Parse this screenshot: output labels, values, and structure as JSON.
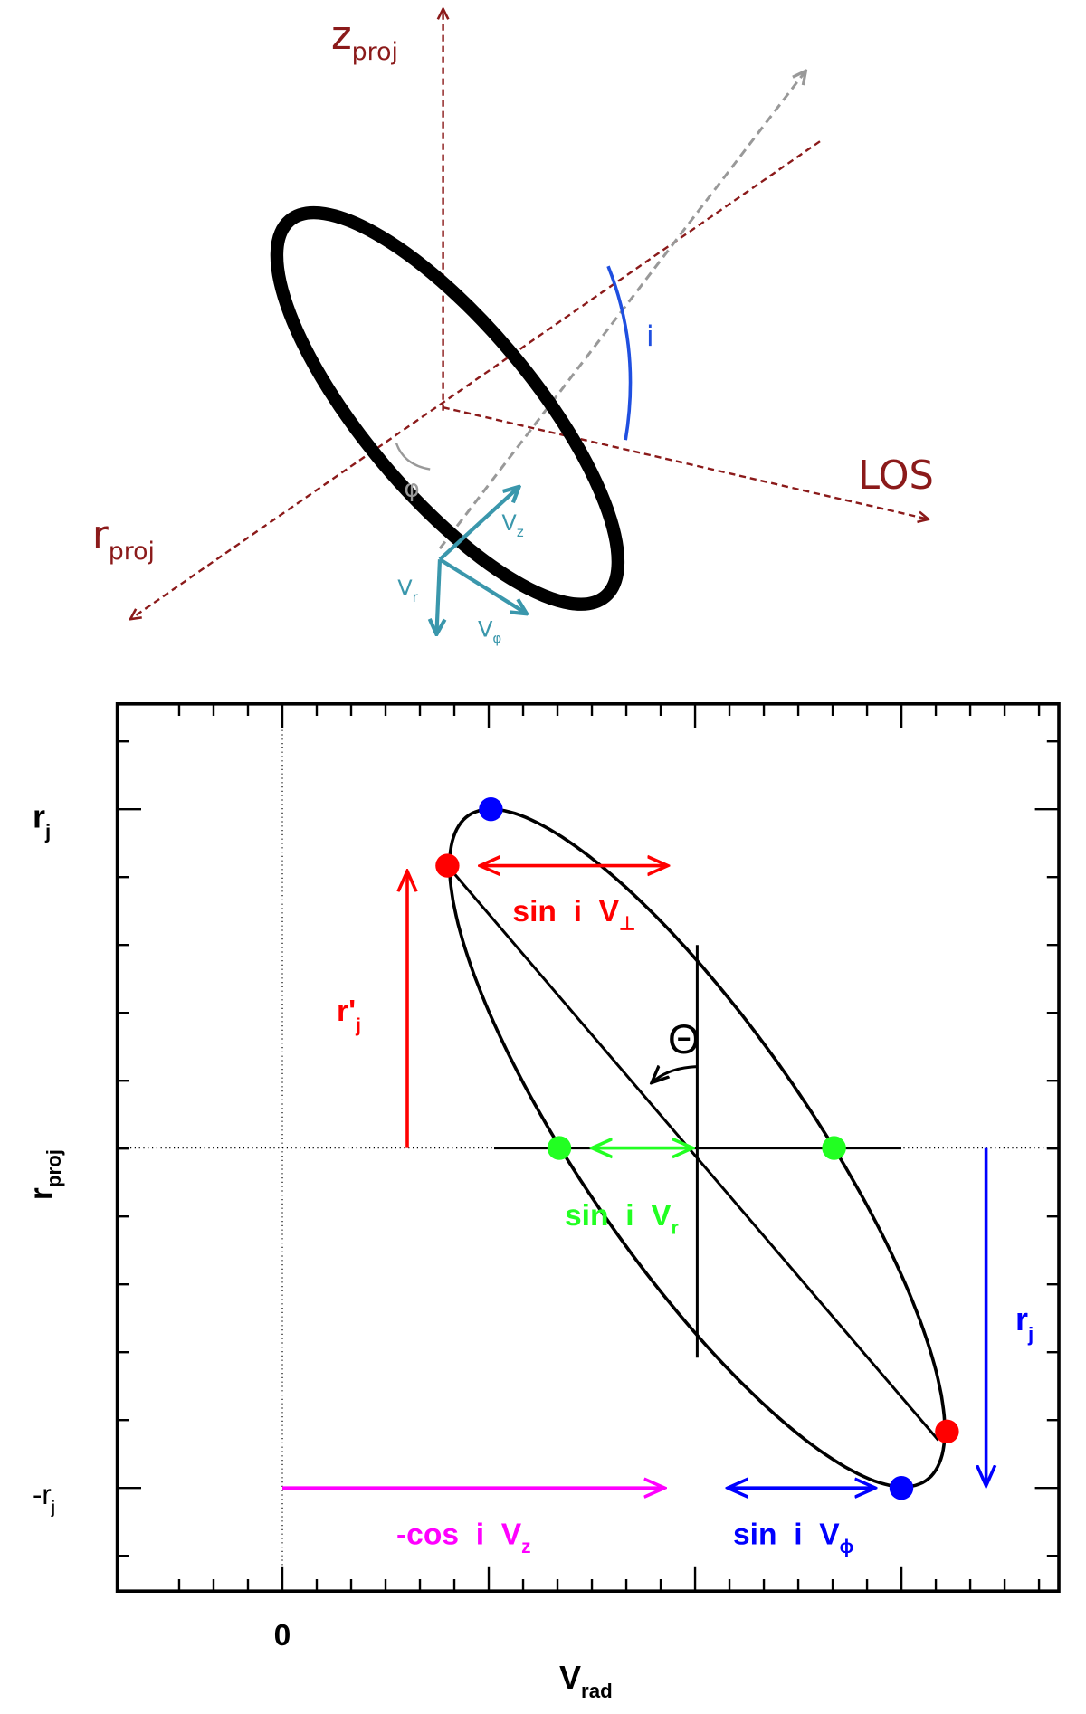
{
  "top_diagram": {
    "z_proj": {
      "main": "z",
      "sub": "proj"
    },
    "r_proj": {
      "main": "r",
      "sub": "proj"
    },
    "los": "LOS",
    "inclination": "i",
    "phi": "φ",
    "v_z": {
      "main": "V",
      "sub": "z"
    },
    "v_r": {
      "main": "V",
      "sub": "r"
    },
    "v_phi": {
      "main": "V",
      "sub": "φ"
    }
  },
  "bottom_plot": {
    "y_axis_label": {
      "main": "r",
      "sub": "proj"
    },
    "x_axis_label": {
      "main": "V",
      "sub": "rad"
    },
    "x_tick_zero": "0",
    "y_tick_top": {
      "main": "r",
      "sub": "j"
    },
    "y_tick_bottom": {
      "main": "-r",
      "sub": "j"
    },
    "theta": "Θ",
    "sin_v_perp": {
      "main": "sin  i  V",
      "sub": "⊥"
    },
    "r_prime_j": {
      "main": "r'",
      "sub": "j"
    },
    "sin_v_r": {
      "main": "sin  i  V",
      "sub": "r"
    },
    "r_j": {
      "main": "r",
      "sub": "j"
    },
    "cos_v_z": {
      "main": "-cos  i  V",
      "sub": "z"
    },
    "sin_v_phi": {
      "main": "sin  i  V",
      "sub": "ϕ"
    }
  }
}
